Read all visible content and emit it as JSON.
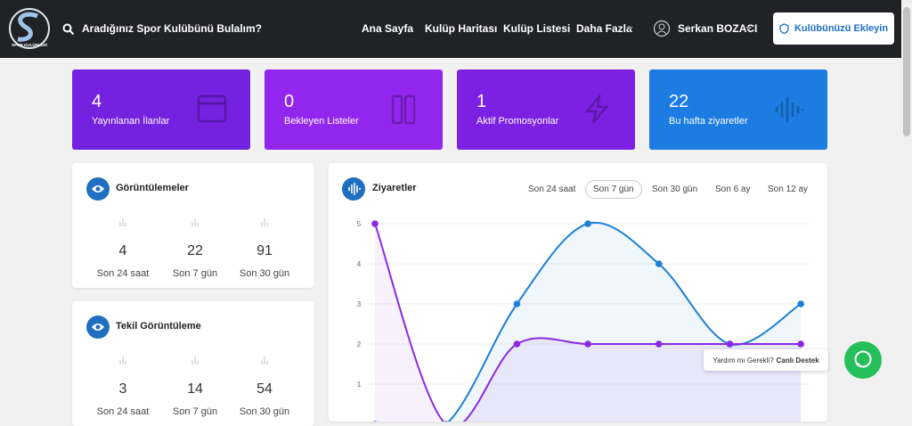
{
  "logo_text": "SPOR KULÜPLERİ",
  "navbar": {
    "search_placeholder": "Aradığınız Spor Kulübünü Bulalım?",
    "links": [
      "Ana Sayfa",
      "Kulüp Haritası",
      "Kulüp Listesi",
      "Daha Fazla"
    ],
    "user": "Serkan BOZACI",
    "button": "Kulübünüzü Ekleyin"
  },
  "stat_cards": [
    {
      "value": 4,
      "label": "Yayınlanan İlanlar"
    },
    {
      "value": 0,
      "label": "Bekleyen Listeler"
    },
    {
      "value": 1,
      "label": "Aktif Promosyonlar"
    },
    {
      "value": 22,
      "label": "Bu hafta ziyaretler"
    }
  ],
  "panels": [
    {
      "title": "Görüntülemeler",
      "stats": [
        {
          "value": 4,
          "label": "Son 24 saat"
        },
        {
          "value": 22,
          "label": "Son 7 gün"
        },
        {
          "value": 91,
          "label": "Son 30 gün"
        }
      ]
    },
    {
      "title": "Tekil Görüntüleme",
      "stats": [
        {
          "value": 3,
          "label": "Son 24 saat"
        },
        {
          "value": 14,
          "label": "Son 7 gün"
        },
        {
          "value": 54,
          "label": "Son 30 gün"
        }
      ]
    }
  ],
  "chart_data": {
    "type": "line",
    "title": "Ziyaretler",
    "tabs": [
      "Son 24 saat",
      "Son 7 gün",
      "Son 30 gün",
      "Son 6 ay",
      "Son 12 ay"
    ],
    "categories": [
      null,
      null,
      null,
      null,
      null,
      null,
      null
    ],
    "ylim": [
      0,
      5
    ],
    "yticks": [
      1,
      2,
      3,
      4,
      5
    ],
    "grid": true,
    "series": [
      {
        "color": "#1e7fd8",
        "values": [
          0,
          0,
          3,
          5,
          4,
          2,
          3
        ]
      },
      {
        "color": "#8a2be2",
        "values": [
          5,
          0,
          2,
          2,
          2,
          2,
          2
        ]
      }
    ]
  },
  "chat": {
    "text": "Yardım mı Gerekli?",
    "link": "Canlı Destek"
  }
}
